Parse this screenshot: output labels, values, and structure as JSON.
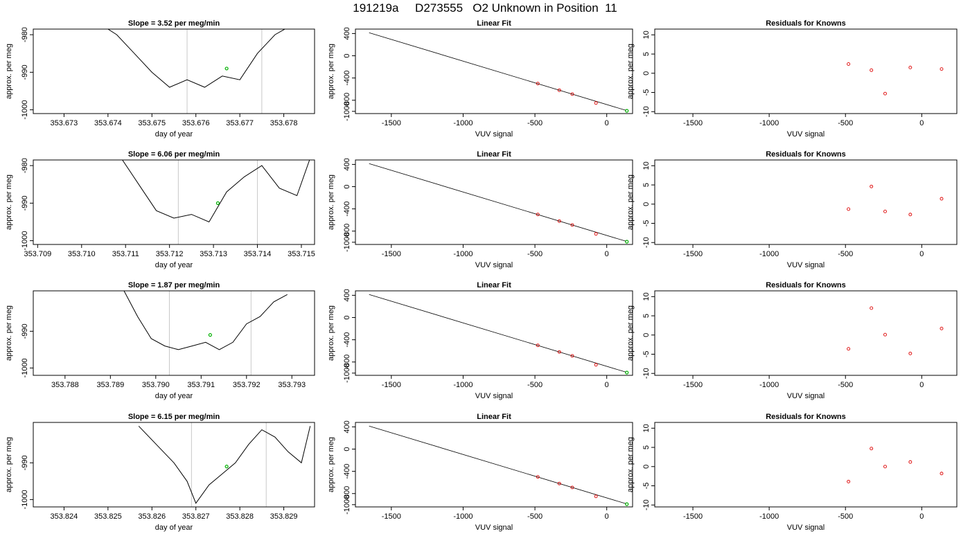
{
  "figure": {
    "title": "191219a     D273555   O2 Unknown in Position  11"
  },
  "chart_data": [
    {
      "type": "line",
      "title": "Slope =  3.52  per meg/min",
      "xlabel": "day of year",
      "ylabel": "approx. per meg",
      "xlim": [
        353.6723,
        353.6787
      ],
      "ylim": [
        -1001,
        -978.5
      ],
      "xticks": [
        "353.673",
        "353.674",
        "353.675",
        "353.676",
        "353.677",
        "353.678"
      ],
      "yticks": [
        "-1000",
        "-990",
        "-980"
      ],
      "vlines": [
        353.6758,
        353.6775
      ],
      "x": [
        353.6738,
        353.6742,
        353.6746,
        353.675,
        353.6754,
        353.6758,
        353.6762,
        353.6766,
        353.677,
        353.6774,
        353.6778,
        353.6781
      ],
      "y": [
        -977,
        -980,
        -985,
        -990,
        -994,
        -992,
        -994,
        -991,
        -992,
        -985,
        -980,
        -978
      ],
      "highlight_x": [
        353.6767
      ],
      "highlight_y": [
        -989
      ],
      "colors": {
        "line": "#000000",
        "vline": "#c8c8c8",
        "highlight": "#00b000"
      }
    },
    {
      "type": "scatter",
      "title": "Linear Fit",
      "xlabel": "VUV signal",
      "ylabel": "approx. per meg",
      "xlim": [
        -1750,
        180
      ],
      "ylim": [
        -1040,
        480
      ],
      "xticks": [
        "-1500",
        "-1000",
        "-500",
        "0"
      ],
      "yticks": [
        "-1000",
        "-800",
        "-400",
        "0",
        "400"
      ],
      "fit_line": {
        "x": [
          -1655,
          135
        ],
        "y": [
          415,
          -983
        ]
      },
      "points": {
        "x": [
          -480,
          -330,
          -240,
          -75
        ],
        "y": [
          -500,
          -620,
          -690,
          -850
        ]
      },
      "unknown": {
        "x": [
          140
        ],
        "y": [
          -990
        ]
      },
      "colors": {
        "line": "#000000",
        "points": "#dd0000",
        "unknown": "#00b000"
      }
    },
    {
      "type": "scatter",
      "title": "Residuals for Knowns",
      "xlabel": "VUV signal",
      "ylabel": "approx. per meg",
      "xlim": [
        -1750,
        230
      ],
      "ylim": [
        -10.5,
        11.5
      ],
      "xticks": [
        "-1500",
        "-1000",
        "-500",
        "0"
      ],
      "yticks": [
        "-10",
        "-5",
        "0",
        "5",
        "10"
      ],
      "points": {
        "x": [
          -480,
          -330,
          -240,
          -75,
          130
        ],
        "y": [
          2.4,
          0.8,
          -5.3,
          1.5,
          1.1
        ]
      },
      "colors": {
        "points": "#dd0000"
      }
    },
    {
      "type": "line",
      "title": "Slope =  6.06  per meg/min",
      "xlabel": "day of year",
      "ylabel": "approx. per meg",
      "xlim": [
        353.7089,
        353.7153
      ],
      "ylim": [
        -1001,
        -978.5
      ],
      "xticks": [
        "353.709",
        "353.710",
        "353.711",
        "353.712",
        "353.713",
        "353.714",
        "353.715"
      ],
      "yticks": [
        "-1000",
        "-990",
        "-980"
      ],
      "vlines": [
        353.7122,
        353.714
      ],
      "x": [
        353.7109,
        353.7113,
        353.7117,
        353.7121,
        353.7125,
        353.7129,
        353.7133,
        353.7137,
        353.7141,
        353.7145,
        353.7149,
        353.7152
      ],
      "y": [
        -978,
        -985,
        -992,
        -994,
        -993,
        -995,
        -987,
        -983,
        -980,
        -986,
        -988,
        -978
      ],
      "highlight_x": [
        353.7131
      ],
      "highlight_y": [
        -990
      ],
      "colors": {
        "line": "#000000",
        "vline": "#c8c8c8",
        "highlight": "#00b000"
      }
    },
    {
      "type": "scatter",
      "title": "Linear Fit",
      "xlabel": "VUV signal",
      "ylabel": "approx. per meg",
      "xlim": [
        -1750,
        180
      ],
      "ylim": [
        -1040,
        480
      ],
      "xticks": [
        "-1500",
        "-1000",
        "-500",
        "0"
      ],
      "yticks": [
        "-1000",
        "-800",
        "-400",
        "0",
        "400"
      ],
      "fit_line": {
        "x": [
          -1655,
          135
        ],
        "y": [
          415,
          -983
        ]
      },
      "points": {
        "x": [
          -480,
          -330,
          -240,
          -75
        ],
        "y": [
          -500,
          -620,
          -690,
          -850
        ]
      },
      "unknown": {
        "x": [
          140
        ],
        "y": [
          -990
        ]
      },
      "colors": {
        "line": "#000000",
        "points": "#dd0000",
        "unknown": "#00b000"
      }
    },
    {
      "type": "scatter",
      "title": "Residuals for Knowns",
      "xlabel": "VUV signal",
      "ylabel": "approx. per meg",
      "xlim": [
        -1750,
        230
      ],
      "ylim": [
        -10.5,
        11.5
      ],
      "xticks": [
        "-1500",
        "-1000",
        "-500",
        "0"
      ],
      "yticks": [
        "-10",
        "-5",
        "0",
        "5",
        "10"
      ],
      "points": {
        "x": [
          -480,
          -330,
          -240,
          -75,
          130
        ],
        "y": [
          -1.3,
          4.6,
          -1.9,
          -2.7,
          1.4
        ]
      },
      "colors": {
        "points": "#dd0000"
      }
    },
    {
      "type": "line",
      "title": "Slope =  1.87  per meg/min",
      "xlabel": "day of year",
      "ylabel": "approx. per meg",
      "xlim": [
        353.7873,
        353.7935
      ],
      "ylim": [
        -1002,
        -979
      ],
      "xticks": [
        "353.788",
        "353.789",
        "353.790",
        "353.791",
        "353.792",
        "353.793"
      ],
      "yticks": [
        "-1000",
        "-990"
      ],
      "vlines": [
        353.7903,
        353.7921
      ],
      "x": [
        353.7893,
        353.7896,
        353.7899,
        353.7902,
        353.7905,
        353.7908,
        353.7911,
        353.7914,
        353.7917,
        353.792,
        353.7923,
        353.7926,
        353.7929
      ],
      "y": [
        -979,
        -986,
        -992,
        -994,
        -995,
        -994,
        -993,
        -995,
        -993,
        -988,
        -986,
        -982,
        -980
      ],
      "highlight_x": [
        353.7912
      ],
      "highlight_y": [
        -991
      ],
      "colors": {
        "line": "#000000",
        "vline": "#c8c8c8",
        "highlight": "#00b000"
      }
    },
    {
      "type": "scatter",
      "title": "Linear Fit",
      "xlabel": "VUV signal",
      "ylabel": "approx. per meg",
      "xlim": [
        -1750,
        180
      ],
      "ylim": [
        -1040,
        480
      ],
      "xticks": [
        "-1500",
        "-1000",
        "-500",
        "0"
      ],
      "yticks": [
        "-1000",
        "-800",
        "-400",
        "0",
        "400"
      ],
      "fit_line": {
        "x": [
          -1655,
          135
        ],
        "y": [
          415,
          -983
        ]
      },
      "points": {
        "x": [
          -480,
          -330,
          -240,
          -75
        ],
        "y": [
          -500,
          -620,
          -690,
          -850
        ]
      },
      "unknown": {
        "x": [
          140
        ],
        "y": [
          -990
        ]
      },
      "colors": {
        "line": "#000000",
        "points": "#dd0000",
        "unknown": "#00b000"
      }
    },
    {
      "type": "scatter",
      "title": "Residuals for Knowns",
      "xlabel": "VUV signal",
      "ylabel": "approx. per meg",
      "xlim": [
        -1750,
        230
      ],
      "ylim": [
        -10.5,
        11.5
      ],
      "xticks": [
        "-1500",
        "-1000",
        "-500",
        "0"
      ],
      "yticks": [
        "-10",
        "-5",
        "0",
        "5",
        "10"
      ],
      "points": {
        "x": [
          -480,
          -330,
          -240,
          -75,
          130
        ],
        "y": [
          -3.6,
          7.0,
          0.1,
          -4.8,
          1.7
        ]
      },
      "colors": {
        "points": "#dd0000"
      }
    },
    {
      "type": "line",
      "title": "Slope =  6.15  per meg/min",
      "xlabel": "day of year",
      "ylabel": "approx. per meg",
      "xlim": [
        353.8233,
        353.8297
      ],
      "ylim": [
        -1002,
        -979
      ],
      "xticks": [
        "353.824",
        "353.825",
        "353.826",
        "353.827",
        "353.828",
        "353.829"
      ],
      "yticks": [
        "-1000",
        "-990"
      ],
      "vlines": [
        353.8269,
        353.8286
      ],
      "x": [
        353.8257,
        353.8261,
        353.8265,
        353.8268,
        353.827,
        353.8273,
        353.8276,
        353.8279,
        353.8282,
        353.8285,
        353.8288,
        353.8291,
        353.8294,
        353.8296
      ],
      "y": [
        -980,
        -985,
        -990,
        -995,
        -1001,
        -996,
        -993,
        -990,
        -985,
        -981,
        -983,
        -987,
        -990,
        -980
      ],
      "highlight_x": [
        353.8277
      ],
      "highlight_y": [
        -991
      ],
      "colors": {
        "line": "#000000",
        "vline": "#c8c8c8",
        "highlight": "#00b000"
      }
    },
    {
      "type": "scatter",
      "title": "Linear Fit",
      "xlabel": "VUV signal",
      "ylabel": "approx. per meg",
      "xlim": [
        -1750,
        180
      ],
      "ylim": [
        -1040,
        480
      ],
      "xticks": [
        "-1500",
        "-1000",
        "-500",
        "0"
      ],
      "yticks": [
        "-1000",
        "-800",
        "-400",
        "0",
        "400"
      ],
      "fit_line": {
        "x": [
          -1655,
          135
        ],
        "y": [
          415,
          -983
        ]
      },
      "points": {
        "x": [
          -480,
          -330,
          -240,
          -75
        ],
        "y": [
          -500,
          -620,
          -690,
          -850
        ]
      },
      "unknown": {
        "x": [
          140
        ],
        "y": [
          -990
        ]
      },
      "colors": {
        "line": "#000000",
        "points": "#dd0000",
        "unknown": "#00b000"
      }
    },
    {
      "type": "scatter",
      "title": "Residuals for Knowns",
      "xlabel": "VUV signal",
      "ylabel": "approx. per meg",
      "xlim": [
        -1750,
        230
      ],
      "ylim": [
        -10.5,
        11.5
      ],
      "xticks": [
        "-1500",
        "-1000",
        "-500",
        "0"
      ],
      "yticks": [
        "-10",
        "-5",
        "0",
        "5",
        "10"
      ],
      "points": {
        "x": [
          -480,
          -330,
          -240,
          -75,
          130
        ],
        "y": [
          -3.9,
          4.7,
          0.0,
          1.2,
          -1.8
        ]
      },
      "colors": {
        "points": "#dd0000"
      }
    }
  ]
}
